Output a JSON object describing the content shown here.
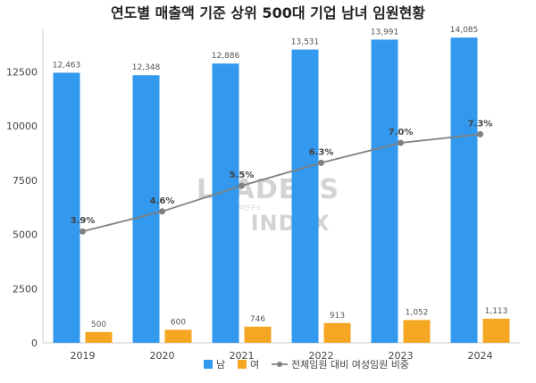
{
  "chart_data": {
    "type": "bar",
    "title": "연도별 매출액 기준 상위 500대 기업 남녀 임원현황",
    "categories": [
      "2019",
      "2020",
      "2021",
      "2022",
      "2023",
      "2024"
    ],
    "series": [
      {
        "name": "남",
        "type": "bar",
        "color": "#3399ee",
        "values": [
          12463,
          12348,
          12886,
          13531,
          13991,
          14085
        ],
        "labels": [
          "12,463",
          "12,348",
          "12,886",
          "13,531",
          "13,991",
          "14,085"
        ]
      },
      {
        "name": "여",
        "type": "bar",
        "color": "#f5a623",
        "values": [
          500,
          600,
          746,
          913,
          1052,
          1113
        ],
        "labels": [
          "500",
          "600",
          "746",
          "913",
          "1,052",
          "1,113"
        ]
      },
      {
        "name": "전체임원 대비 여성임원 비중",
        "type": "line",
        "color": "#808080",
        "values": [
          3.9,
          4.6,
          5.5,
          6.3,
          7.0,
          7.3
        ],
        "labels": [
          "3.9%",
          "4.6%",
          "5.5%",
          "6.3%",
          "7.0%",
          "7.3%"
        ]
      }
    ],
    "ylim": [
      0,
      14500
    ],
    "yticks": [
      "0",
      "2500",
      "5000",
      "7500",
      "10000",
      "12500"
    ],
    "y2lim": [
      0,
      11
    ],
    "legend": "bottom",
    "grid": false
  },
  "watermark": {
    "brand": "LEADERS",
    "brand2": "INDEX",
    "tagline": "기업분석연구소"
  }
}
